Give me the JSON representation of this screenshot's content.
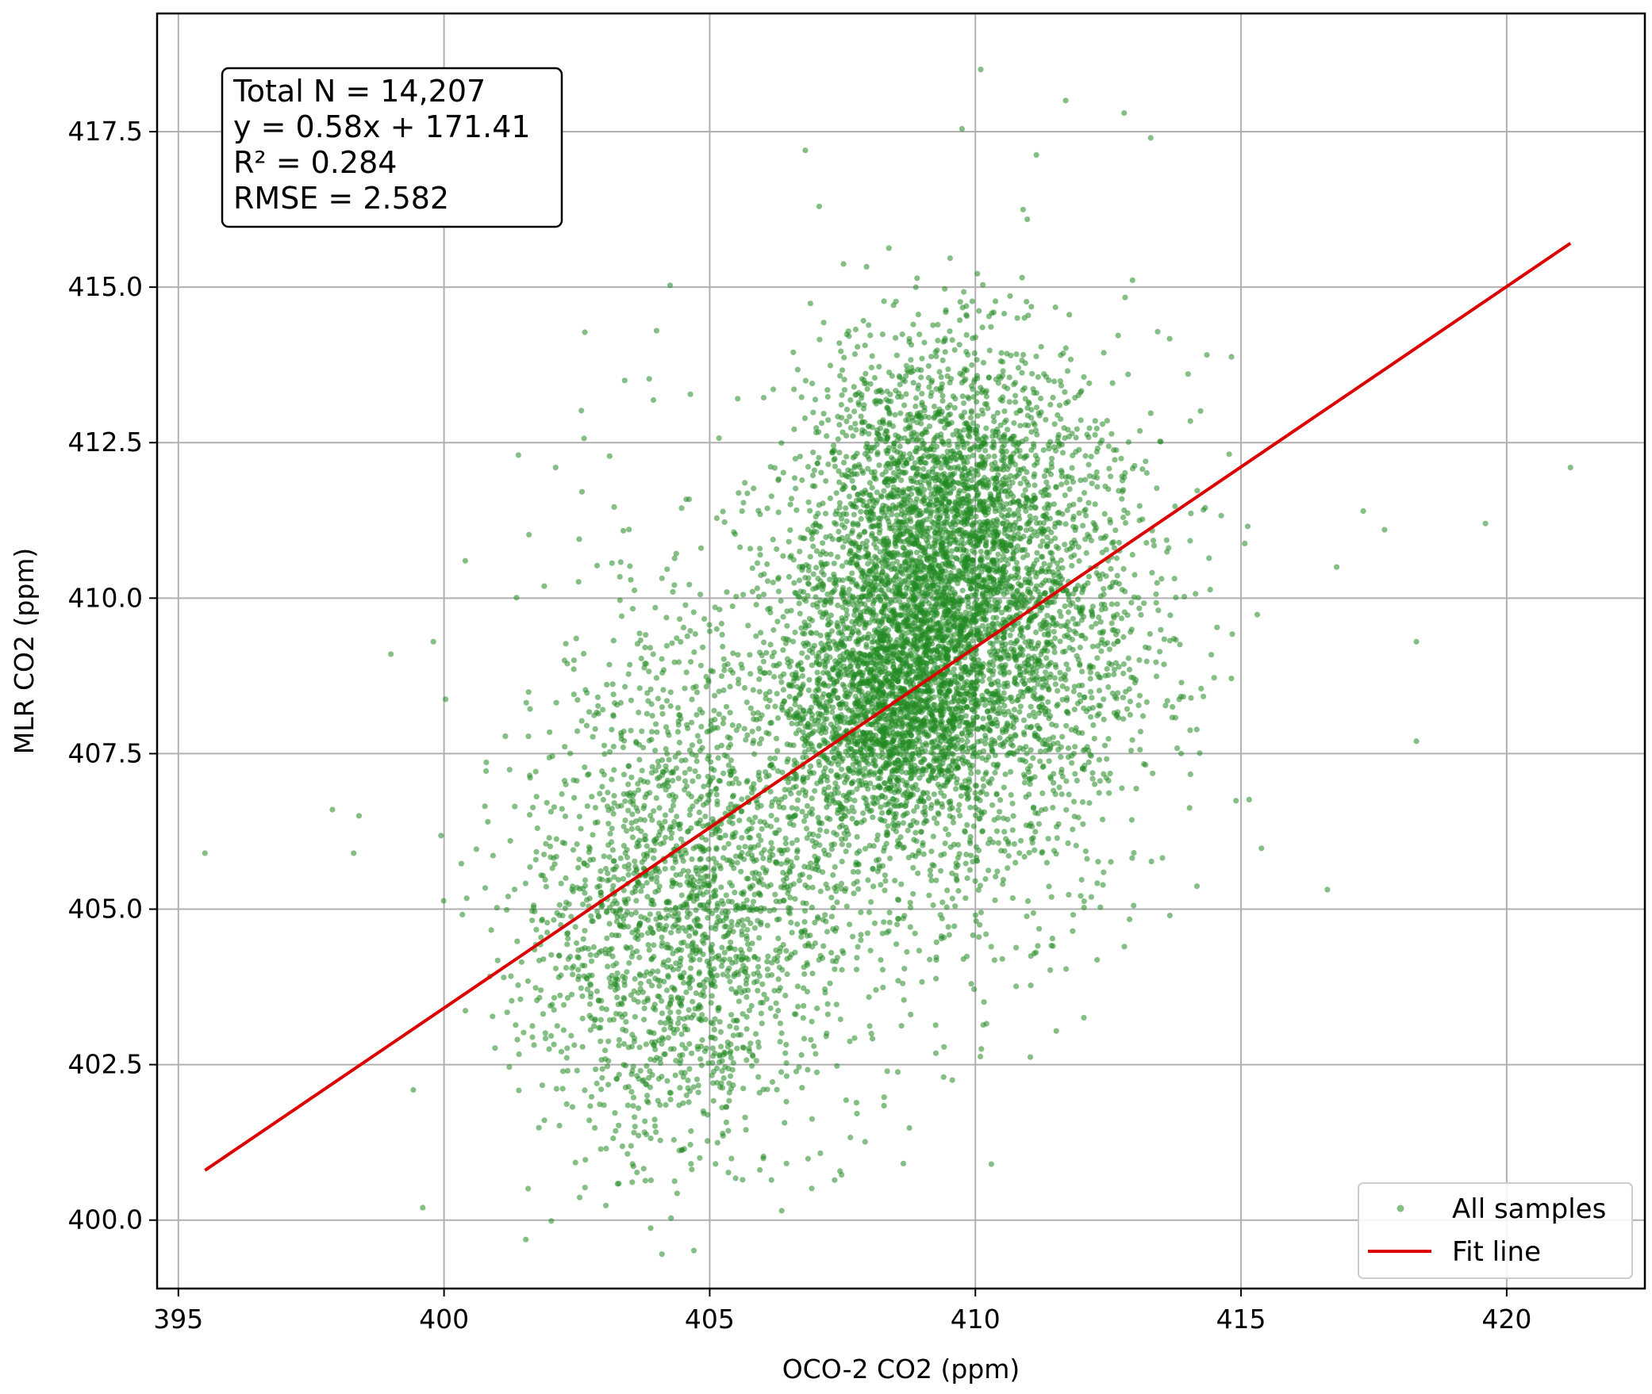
{
  "chart_data": {
    "type": "scatter",
    "xlabel": "OCO-2 CO2 (ppm)",
    "ylabel": "MLR CO2 (ppm)",
    "xlim": [
      394.6,
      422.6
    ],
    "ylim": [
      398.9,
      419.4
    ],
    "xticks": [
      395,
      400,
      405,
      410,
      415,
      420
    ],
    "xtick_labels": [
      "395",
      "400",
      "405",
      "410",
      "415",
      "420"
    ],
    "yticks": [
      400.0,
      402.5,
      405.0,
      407.5,
      410.0,
      412.5,
      415.0,
      417.5
    ],
    "ytick_labels": [
      "400.0",
      "402.5",
      "405.0",
      "407.5",
      "410.0",
      "412.5",
      "415.0",
      "417.5"
    ],
    "grid": true,
    "stats": [
      "Total N = 14,207",
      "y = 0.58x + 171.41",
      "R² = 0.284",
      "RMSE = 2.582"
    ],
    "stats_placement": "top-left",
    "legend_placement": "bottom-right",
    "series": [
      {
        "name": "All samples",
        "kind": "scatter",
        "color": "#228b22",
        "opacity": 0.55,
        "n": 14207,
        "clusters": [
          {
            "cx": 409.3,
            "cy": 410.8,
            "sx": 1.2,
            "sy": 1.6,
            "w": 0.3
          },
          {
            "cx": 408.4,
            "cy": 408.2,
            "sx": 0.9,
            "sy": 1.0,
            "w": 0.17
          },
          {
            "cx": 410.6,
            "cy": 409.6,
            "sx": 1.5,
            "sy": 2.1,
            "w": 0.21
          },
          {
            "cx": 404.4,
            "cy": 404.8,
            "sx": 1.5,
            "sy": 1.8,
            "w": 0.2
          },
          {
            "cx": 407.2,
            "cy": 407.5,
            "sx": 2.2,
            "sy": 2.4,
            "w": 0.12
          }
        ],
        "outliers": [
          [
            395.5,
            405.9
          ],
          [
            397.9,
            406.6
          ],
          [
            398.4,
            406.5
          ],
          [
            399.6,
            400.2
          ],
          [
            399.8,
            409.3
          ],
          [
            399.0,
            409.1
          ],
          [
            419.6,
            411.2
          ],
          [
            421.2,
            412.1
          ],
          [
            418.3,
            409.3
          ],
          [
            417.7,
            411.1
          ],
          [
            417.3,
            411.4
          ],
          [
            416.8,
            410.5
          ],
          [
            404.0,
            414.3
          ],
          [
            403.4,
            413.5
          ],
          [
            410.1,
            418.5
          ],
          [
            411.7,
            418.0
          ],
          [
            412.8,
            417.8
          ],
          [
            406.8,
            417.2
          ],
          [
            410.3,
            400.9
          ],
          [
            402.1,
            412.1
          ],
          [
            401.4,
            412.3
          ],
          [
            413.3,
            417.4
          ],
          [
            400.4,
            410.6
          ],
          [
            398.3,
            405.9
          ],
          [
            418.3,
            407.7
          ]
        ]
      },
      {
        "name": "Fit line",
        "kind": "line",
        "color": "#dd0000",
        "slope": 0.58,
        "intercept": 171.41,
        "x_range": [
          395.5,
          421.2
        ]
      }
    ]
  }
}
